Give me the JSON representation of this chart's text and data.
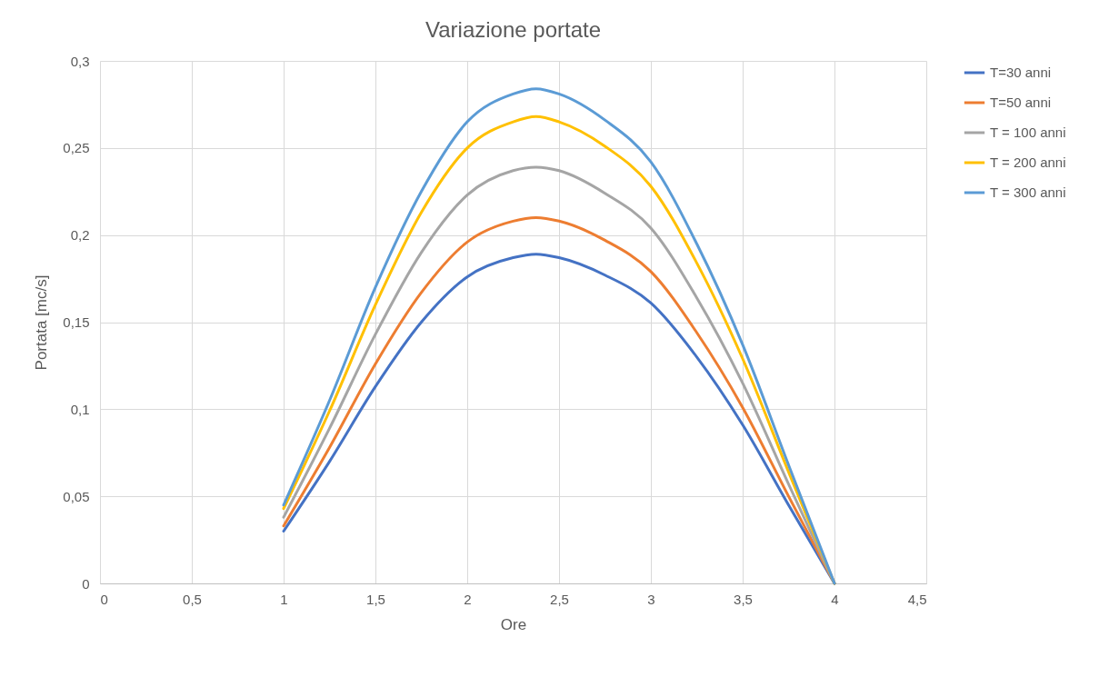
{
  "chart_data": {
    "type": "line",
    "title": "Variazione portate",
    "xlabel": "Ore",
    "ylabel": "Portata [mc/s]",
    "x": [
      1,
      1.25,
      1.5,
      1.75,
      2,
      2.25,
      2.375,
      2.5,
      2.75,
      3,
      3.25,
      3.5,
      3.75,
      4
    ],
    "series": [
      {
        "name": "T=30 anni",
        "color": "#4472c4",
        "values": [
          0.03,
          0.07,
          0.113,
          0.15,
          0.176,
          0.187,
          0.189,
          0.187,
          0.177,
          0.161,
          0.13,
          0.091,
          0.045,
          0
        ]
      },
      {
        "name": "T=50 anni",
        "color": "#ed7d31",
        "values": [
          0.033,
          0.078,
          0.126,
          0.167,
          0.196,
          0.208,
          0.21,
          0.208,
          0.197,
          0.179,
          0.144,
          0.101,
          0.05,
          0
        ]
      },
      {
        "name": "T = 100 anni",
        "color": "#a5a5a5",
        "values": [
          0.038,
          0.089,
          0.143,
          0.19,
          0.223,
          0.237,
          0.239,
          0.237,
          0.224,
          0.204,
          0.164,
          0.115,
          0.057,
          0
        ]
      },
      {
        "name": "T = 200 anni",
        "color": "#ffc000",
        "values": [
          0.043,
          0.099,
          0.16,
          0.213,
          0.25,
          0.265,
          0.268,
          0.265,
          0.251,
          0.228,
          0.184,
          0.129,
          0.064,
          0
        ]
      },
      {
        "name": "T = 300 anni",
        "color": "#5b9bd5",
        "values": [
          0.045,
          0.105,
          0.17,
          0.225,
          0.265,
          0.281,
          0.284,
          0.281,
          0.266,
          0.242,
          0.195,
          0.137,
          0.068,
          0
        ]
      }
    ],
    "xlim": [
      0,
      4.5
    ],
    "xticks": [
      0,
      {
        "value": 0.5,
        "label": "0,5"
      },
      1,
      {
        "value": 1.5,
        "label": "1,5"
      },
      2,
      {
        "value": 2.5,
        "label": "2,5"
      },
      3,
      {
        "value": 3.5,
        "label": "3,5"
      },
      4,
      {
        "value": 4.5,
        "label": "4,5"
      }
    ],
    "ylim": [
      0,
      0.3
    ],
    "yticks": [
      0,
      {
        "value": 0.05,
        "label": "0,05"
      },
      {
        "value": 0.1,
        "label": "0,1"
      },
      {
        "value": 0.15,
        "label": "0,15"
      },
      {
        "value": 0.2,
        "label": "0,2"
      },
      {
        "value": 0.25,
        "label": "0,25"
      },
      {
        "value": 0.3,
        "label": "0,3"
      }
    ],
    "grid": true,
    "legend": "right",
    "line_style": "solid"
  }
}
